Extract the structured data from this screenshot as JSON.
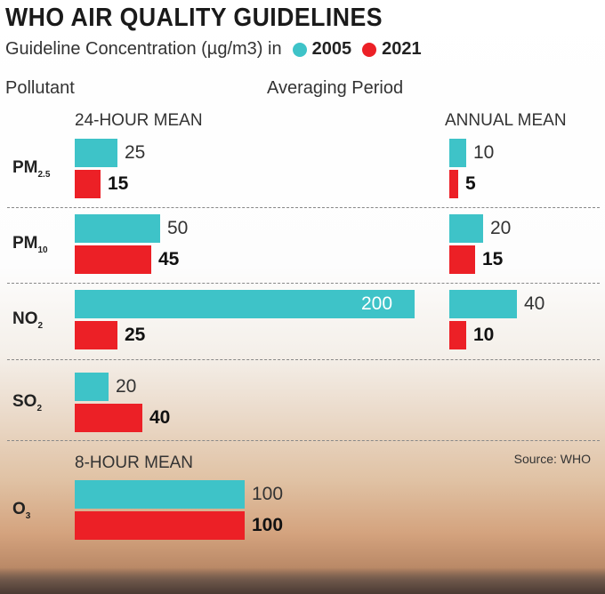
{
  "header": {
    "title": "WHO AIR QUALITY GUIDELINES",
    "subtitle": "Guideline Concentration (µg/m3) in",
    "pollutant_label": "Pollutant",
    "period_label": "Averaging Period",
    "source": "Source: WHO"
  },
  "legend": [
    {
      "label": "2005",
      "color": "#3ec3c8"
    },
    {
      "label": "2021",
      "color": "#ec2026"
    }
  ],
  "chart_data": {
    "type": "bar",
    "title": "WHO AIR QUALITY GUIDELINES",
    "subtitle": "Guideline Concentration (µg/m3) in 2005 / 2021",
    "unit": "µg/m3",
    "colors": {
      "2005": "#3ec3c8",
      "2021": "#ec2026"
    },
    "periods": [
      "24-HOUR MEAN",
      "ANNUAL MEAN",
      "8-HOUR MEAN"
    ],
    "pollutants": [
      {
        "name": "PM",
        "sub": "2.5",
        "24-HOUR MEAN": {
          "2005": 25,
          "2021": 15
        },
        "ANNUAL MEAN": {
          "2005": 10,
          "2021": 5
        }
      },
      {
        "name": "PM",
        "sub": "10",
        "24-HOUR MEAN": {
          "2005": 50,
          "2021": 45
        },
        "ANNUAL MEAN": {
          "2005": 20,
          "2021": 15
        }
      },
      {
        "name": "NO",
        "sub": "2",
        "24-HOUR MEAN": {
          "2005": 200,
          "2021": 25
        },
        "ANNUAL MEAN": {
          "2005": 40,
          "2021": 10
        }
      },
      {
        "name": "SO",
        "sub": "2",
        "24-HOUR MEAN": {
          "2005": 20,
          "2021": 40
        }
      },
      {
        "name": "O",
        "sub": "3",
        "8-HOUR MEAN": {
          "2005": 100,
          "2021": 100
        }
      }
    ],
    "grid": false,
    "legend_position": "top"
  }
}
